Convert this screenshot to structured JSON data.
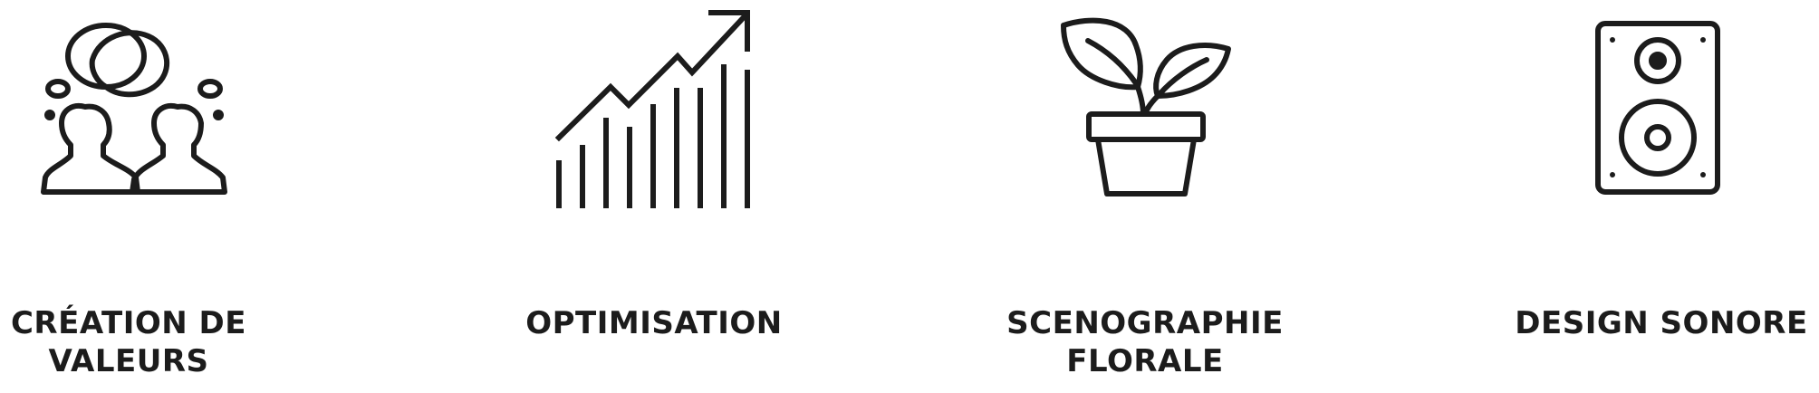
{
  "features": [
    {
      "id": "creation",
      "icon": "people-talking-icon",
      "label_lines": [
        "CRÉATION DE",
        "VALEURS"
      ]
    },
    {
      "id": "optimisation",
      "icon": "growth-chart-icon",
      "label_lines": [
        "OPTIMISATION"
      ]
    },
    {
      "id": "scenographie",
      "icon": "potted-plant-icon",
      "label_lines": [
        "SCENOGRAPHIE",
        "FLORALE"
      ]
    },
    {
      "id": "design-sonore",
      "icon": "speaker-icon",
      "label_lines": [
        "DESIGN SONORE"
      ]
    }
  ],
  "colors": {
    "ink": "#1c1c1c",
    "background": "#ffffff"
  }
}
